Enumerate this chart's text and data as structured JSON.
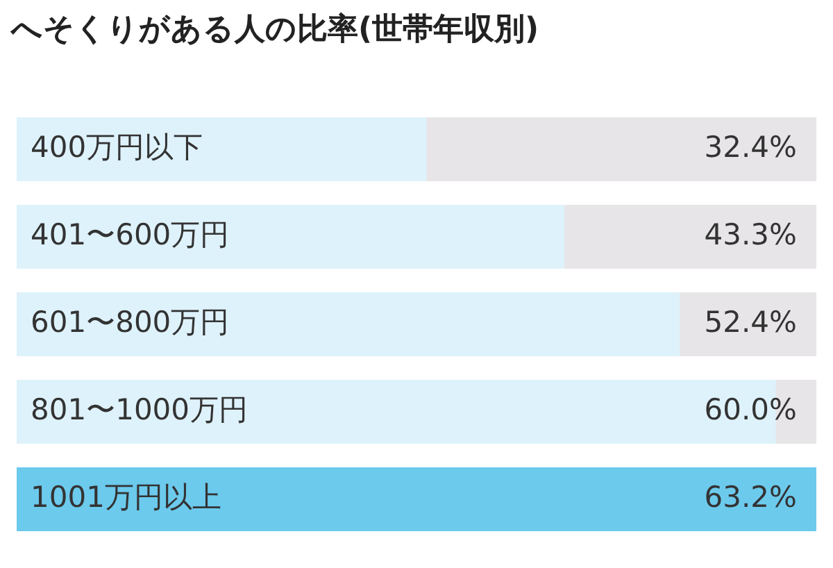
{
  "chart_data": {
    "type": "bar",
    "orientation": "horizontal",
    "title": "へそくりがある人の比率(世帯年収別)",
    "categories": [
      "400万円以下",
      "401〜600万円",
      "601〜800万円",
      "801〜1000万円",
      "1001万円以上"
    ],
    "values": [
      32.4,
      43.3,
      52.4,
      60.0,
      63.2
    ],
    "colors": [
      "#def2fb",
      "#def2fb",
      "#def2fb",
      "#def2fb",
      "#6ccaed"
    ],
    "value_labels": [
      "32.4%",
      "43.3%",
      "52.4%",
      "60.0%",
      "63.2%"
    ],
    "xlim": [
      0,
      63.2
    ]
  }
}
